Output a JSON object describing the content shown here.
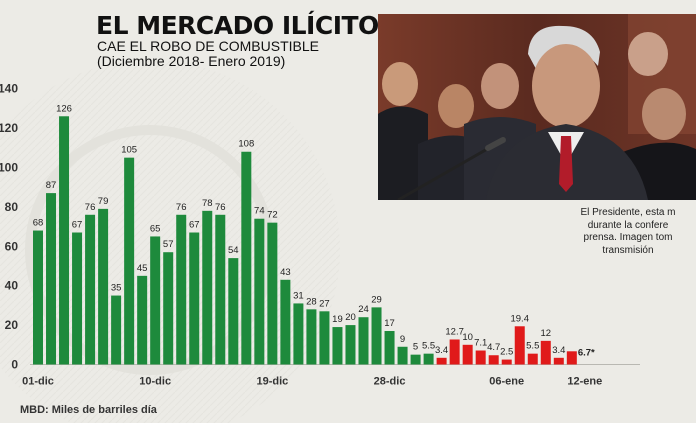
{
  "header": {
    "title": "EL MERCADO ILÍCITO",
    "subtitle": "CAE EL ROBO DE COMBUSTIBLE",
    "subtitle_dates": "(Diciembre 2018- Enero 2019)"
  },
  "photo": {
    "caption_lines": [
      "El Presidente, esta m",
      "durante la confere",
      "prensa. Imagen tom",
      "transmisión"
    ]
  },
  "footnote": "MBD: Miles de barriles día",
  "colors": {
    "december": "#1e8a3c",
    "january": "#e01a1a",
    "background": "#ecebe6"
  },
  "chart_data": {
    "type": "bar",
    "y_ticks": [
      "140",
      "120",
      "100",
      "80",
      "60",
      "40",
      "20",
      "0"
    ],
    "ylim": [
      0,
      140
    ],
    "grid": false,
    "x_tick_labels": [
      {
        "index": 0,
        "label": "01-dic"
      },
      {
        "index": 9,
        "label": "10-dic"
      },
      {
        "index": 18,
        "label": "19-dic"
      },
      {
        "index": 27,
        "label": "28-dic"
      },
      {
        "index": 36,
        "label": "06-ene"
      },
      {
        "index": 42,
        "label": "12-ene"
      }
    ],
    "series": [
      {
        "period": "Diciembre 2018",
        "color": "#1e8a3c",
        "values": [
          68,
          87,
          126,
          67,
          76,
          79,
          35,
          105,
          45,
          65,
          57,
          76,
          67,
          78,
          76,
          54,
          108,
          74,
          72,
          43,
          31,
          28,
          27,
          19,
          20,
          24,
          29,
          17,
          9,
          5,
          5.5
        ],
        "labels": [
          "68",
          "87",
          "126",
          "67",
          "76",
          "79",
          "35",
          "105",
          "45",
          "65",
          "57",
          "76",
          "67",
          "78",
          "76",
          "54",
          "108",
          "74",
          "72",
          "43",
          "31",
          "28",
          "27",
          "19",
          "20",
          "24",
          "29",
          "17",
          "9",
          "5",
          "5.5"
        ]
      },
      {
        "period": "Enero 2019",
        "color": "#e01a1a",
        "values": [
          3.4,
          12.7,
          10,
          7.1,
          4.7,
          2.5,
          19.4,
          5.5,
          12,
          3.4,
          6.7
        ],
        "labels": [
          "3.4",
          "12.7",
          "10",
          "7.1",
          "4.7",
          "2.5",
          "19.4",
          "5.5",
          "12",
          "3.4",
          "6.7*"
        ]
      }
    ]
  }
}
